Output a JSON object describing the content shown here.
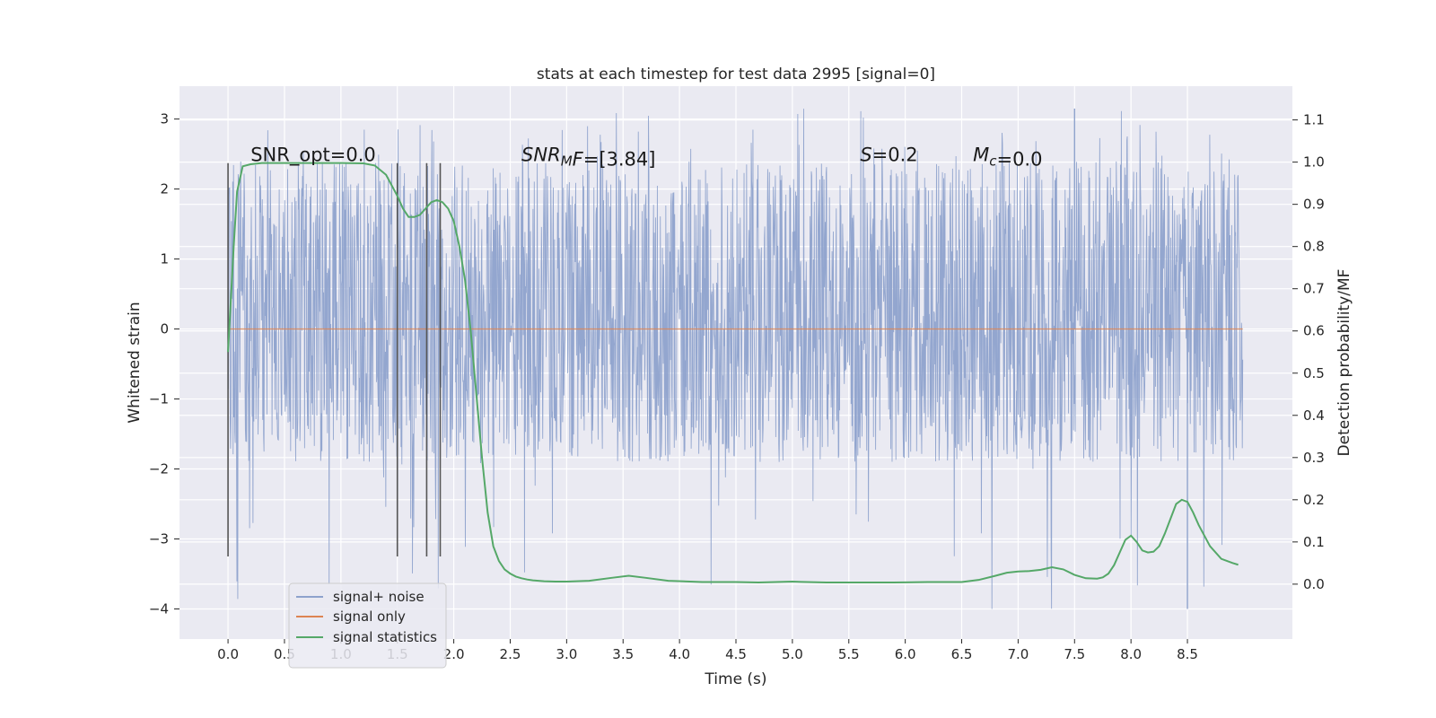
{
  "chart_data": {
    "type": "line",
    "title": "stats at each timestep for test data 2995 [signal=0]",
    "xlabel": "Time (s)",
    "ylabel": "Whitened strain",
    "y2label": "Detection probability/MF",
    "xlim": [
      -0.43,
      9.43
    ],
    "ylim": [
      -4.43,
      3.47
    ],
    "y2lim": [
      -0.13,
      1.18
    ],
    "xticks": [
      0.0,
      0.5,
      1.0,
      1.5,
      2.0,
      2.5,
      3.0,
      3.5,
      4.0,
      4.5,
      5.0,
      5.5,
      6.0,
      6.5,
      7.0,
      7.5,
      8.0,
      8.5
    ],
    "xtick_labels": [
      "0.0",
      "0.5",
      "1.0",
      "1.5",
      "2.0",
      "2.5",
      "3.0",
      "3.5",
      "4.0",
      "4.5",
      "5.0",
      "5.5",
      "6.0",
      "6.5",
      "7.0",
      "7.5",
      "8.0",
      "8.5"
    ],
    "yticks": [
      -4,
      -3,
      -2,
      -1,
      0,
      1,
      2,
      3
    ],
    "ytick_labels": [
      "−4",
      "−3",
      "−2",
      "−1",
      "0",
      "1",
      "2",
      "3"
    ],
    "y2ticks": [
      0.0,
      0.1,
      0.2,
      0.3,
      0.4,
      0.5,
      0.6,
      0.7,
      0.8,
      0.9,
      1.0,
      1.1
    ],
    "y2tick_labels": [
      "0.0",
      "0.1",
      "0.2",
      "0.3",
      "0.4",
      "0.5",
      "0.6",
      "0.7",
      "0.8",
      "0.9",
      "1.0",
      "1.1"
    ],
    "grid": true,
    "legend_position": "lower-left",
    "series": [
      {
        "name": "signal+ noise",
        "axis": "left",
        "color": "#8ea2cc",
        "style": "dense noise",
        "x_range": [
          0.0,
          8.99
        ],
        "core_band": [
          -1.0,
          1.25
        ],
        "typical_band": [
          -1.9,
          2.4
        ],
        "y_min": -4.0,
        "y_max": 3.15
      },
      {
        "name": "signal only",
        "axis": "left",
        "color": "#dd8452",
        "x_range": [
          0.0,
          8.99
        ],
        "values": 0.0
      },
      {
        "name": "signal statistics",
        "axis": "right",
        "color": "#55a868",
        "x": [
          0.0,
          0.05,
          0.08,
          0.13,
          0.2,
          0.3,
          0.5,
          0.8,
          1.0,
          1.2,
          1.3,
          1.4,
          1.5,
          1.55,
          1.6,
          1.65,
          1.7,
          1.75,
          1.8,
          1.85,
          1.9,
          1.95,
          2.0,
          2.05,
          2.1,
          2.15,
          2.2,
          2.25,
          2.3,
          2.35,
          2.4,
          2.45,
          2.5,
          2.55,
          2.6,
          2.65,
          2.7,
          2.8,
          2.9,
          3.0,
          3.2,
          3.4,
          3.55,
          3.7,
          3.9,
          4.2,
          4.5,
          4.7,
          5.0,
          5.3,
          5.6,
          5.9,
          6.2,
          6.5,
          6.65,
          6.8,
          6.9,
          7.0,
          7.1,
          7.2,
          7.3,
          7.4,
          7.5,
          7.6,
          7.7,
          7.75,
          7.8,
          7.85,
          7.9,
          7.95,
          8.0,
          8.05,
          8.1,
          8.15,
          8.2,
          8.25,
          8.3,
          8.35,
          8.4,
          8.45,
          8.5,
          8.55,
          8.6,
          8.7,
          8.8,
          8.9,
          8.95
        ],
        "y": [
          0.55,
          0.8,
          0.93,
          0.99,
          0.995,
          0.998,
          0.998,
          0.998,
          0.998,
          0.997,
          0.992,
          0.97,
          0.92,
          0.89,
          0.87,
          0.87,
          0.875,
          0.89,
          0.905,
          0.91,
          0.905,
          0.89,
          0.86,
          0.8,
          0.72,
          0.6,
          0.45,
          0.3,
          0.17,
          0.09,
          0.055,
          0.035,
          0.025,
          0.018,
          0.014,
          0.011,
          0.009,
          0.007,
          0.006,
          0.006,
          0.008,
          0.015,
          0.02,
          0.015,
          0.008,
          0.005,
          0.005,
          0.004,
          0.006,
          0.004,
          0.004,
          0.004,
          0.005,
          0.005,
          0.01,
          0.02,
          0.027,
          0.03,
          0.031,
          0.034,
          0.04,
          0.035,
          0.022,
          0.014,
          0.013,
          0.016,
          0.025,
          0.045,
          0.075,
          0.105,
          0.115,
          0.1,
          0.08,
          0.075,
          0.077,
          0.09,
          0.12,
          0.155,
          0.19,
          0.2,
          0.195,
          0.17,
          0.14,
          0.09,
          0.06,
          0.05,
          0.046
        ]
      }
    ],
    "vertical_markers": {
      "color": "#555555",
      "x": [
        0.0,
        1.5,
        1.76,
        1.88
      ],
      "y_range": [
        -3.25,
        2.37
      ]
    },
    "annotations": [
      {
        "id": "snr-opt",
        "kind": "plain",
        "text": "SNR_opt=0.0",
        "x": 0.2,
        "y": 2.4
      },
      {
        "id": "snr-mf",
        "kind": "subscript",
        "italic": "SNR",
        "sub": "M",
        "rest_italic": "F",
        "rest": "=[3.84]",
        "x": 2.6,
        "y": 2.4
      },
      {
        "id": "s",
        "kind": "subscript",
        "italic": "S",
        "sub": "",
        "rest_italic": "",
        "rest": "=0.2",
        "x": 5.6,
        "y": 2.4
      },
      {
        "id": "mc",
        "kind": "subscript",
        "italic": "M",
        "sub": "c",
        "rest_italic": "",
        "rest": "=0.0",
        "x": 6.6,
        "y": 2.4
      }
    ],
    "legend": {
      "entries": [
        {
          "label": "signal+ noise",
          "color": "#8ea2cc"
        },
        {
          "label": "signal only",
          "color": "#dd8452"
        },
        {
          "label": "signal statistics",
          "color": "#55a868"
        }
      ]
    }
  },
  "colors": {
    "axes_background": "#eaeaf2",
    "grid": "#ffffff",
    "noise": "#8ea2cc",
    "signal_only": "#dd8452",
    "statistics": "#55a868",
    "markers": "#555555"
  }
}
